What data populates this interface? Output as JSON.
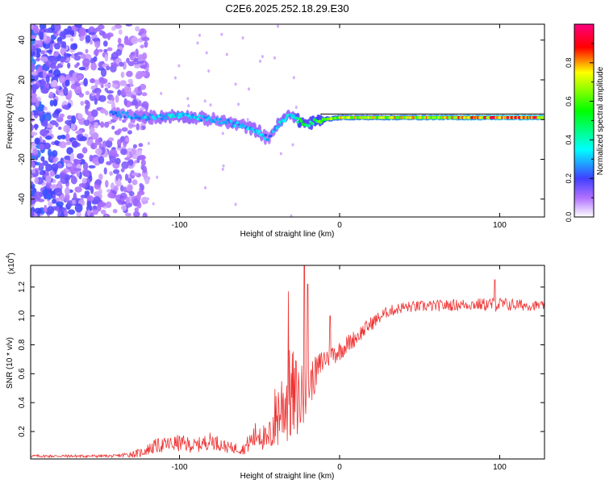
{
  "title": "C2E6.2025.252.18.29.E30",
  "chart_data": [
    {
      "type": "heatmap",
      "title": "C2E6.2025.252.18.29.E30",
      "xlabel": "Height of straight line (km)",
      "ylabel": "Frequency (Hz)",
      "xlim": [
        -193,
        128
      ],
      "ylim": [
        -49,
        48
      ],
      "x_ticks": [
        -100,
        0,
        100
      ],
      "y_ticks": [
        -40,
        -20,
        0,
        20,
        40
      ],
      "colorbar": {
        "label": "Normalized spectral amplitude",
        "range": [
          0,
          1
        ],
        "ticks": [
          0.0,
          0.2,
          0.4,
          0.6,
          0.8
        ]
      },
      "ridge": {
        "description_points_x": [
          -140,
          -120,
          -100,
          -80,
          -60,
          -50,
          -45,
          -40,
          -35,
          -30,
          -25,
          -20,
          -10,
          0,
          20,
          50,
          80,
          100,
          128
        ],
        "frequency": [
          3,
          1,
          2,
          0,
          -3,
          -6,
          -10,
          -4,
          0,
          3,
          -1,
          -2,
          0,
          1,
          1,
          1,
          1,
          1,
          1
        ],
        "amplitude": [
          0.25,
          0.3,
          0.35,
          0.3,
          0.3,
          0.35,
          0.25,
          0.3,
          0.4,
          0.3,
          0.55,
          0.5,
          0.6,
          0.7,
          0.7,
          0.75,
          0.8,
          0.85,
          0.85
        ]
      },
      "noise_region_x": [
        -193,
        -128
      ]
    },
    {
      "type": "line",
      "xlabel": "Height of straight line (km)",
      "ylabel": "SNR (10 * v/v)",
      "y_multiplier": "(x10",
      "y_multiplier_exp": "4",
      "y_multiplier_close": ")",
      "xlim": [
        -193,
        128
      ],
      "ylim": [
        0.01,
        1.35
      ],
      "x_ticks": [
        -100,
        0,
        100
      ],
      "y_ticks": [
        0.2,
        0.4,
        0.6,
        0.8,
        1.0,
        1.2
      ],
      "color": "#ee3333",
      "trend": {
        "x": [
          -193,
          -140,
          -125,
          -115,
          -100,
          -90,
          -80,
          -70,
          -60,
          -50,
          -45,
          -40,
          -35,
          -30,
          -25,
          -20,
          -15,
          -10,
          0,
          10,
          20,
          30,
          40,
          60,
          80,
          100,
          128
        ],
        "y": [
          0.03,
          0.03,
          0.05,
          0.1,
          0.12,
          0.1,
          0.14,
          0.09,
          0.08,
          0.2,
          0.12,
          0.3,
          0.4,
          0.45,
          0.42,
          0.5,
          0.6,
          0.7,
          0.76,
          0.85,
          0.95,
          1.03,
          1.06,
          1.07,
          1.08,
          1.08,
          1.07
        ],
        "noise": [
          0.01,
          0.01,
          0.03,
          0.05,
          0.06,
          0.05,
          0.06,
          0.04,
          0.04,
          0.12,
          0.08,
          0.25,
          0.3,
          0.35,
          0.25,
          0.18,
          0.12,
          0.09,
          0.07,
          0.06,
          0.05,
          0.04,
          0.04,
          0.04,
          0.04,
          0.05,
          0.03
        ]
      },
      "spikes": [
        {
          "x": -32,
          "y": 1.17
        },
        {
          "x": -22,
          "y": 1.35
        },
        {
          "x": -20,
          "y": 1.22
        },
        {
          "x": -6,
          "y": 1.0
        },
        {
          "x": 97,
          "y": 1.25
        }
      ]
    }
  ]
}
